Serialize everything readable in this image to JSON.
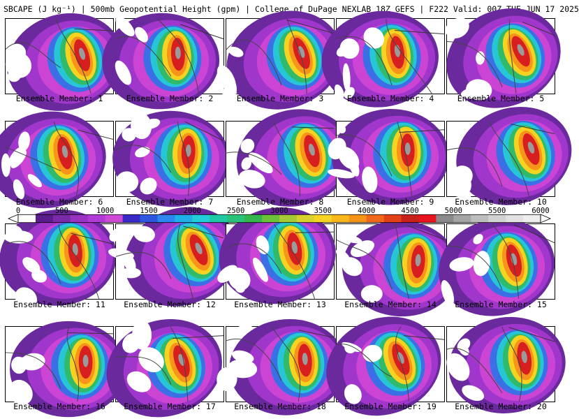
{
  "title": "SBCAPE (J kg⁻¹) | 500mb Geopotential Height (gpm) | College of DuPage NEXLAB 18Z GEFS | F222 Valid: 00Z TUE JUN 17 2025",
  "panel_label_prefix": "Ensemble Member: ",
  "members": [
    "1",
    "2",
    "3",
    "4",
    "5",
    "6",
    "7",
    "8",
    "9",
    "10",
    "11",
    "12",
    "13",
    "14",
    "15",
    "16",
    "17",
    "18",
    "19",
    "20"
  ],
  "colorbar": {
    "ticks": [
      "0",
      "500",
      "1000",
      "1500",
      "2000",
      "2500",
      "3000",
      "3500",
      "4000",
      "4500",
      "5000",
      "5500",
      "6000"
    ],
    "colors": [
      "#ffffff",
      "#5a1e8c",
      "#7a2aa8",
      "#9a33c2",
      "#b23ad6",
      "#cf4ad4",
      "#3a2ac8",
      "#2d57e0",
      "#2e86f0",
      "#1fb0ea",
      "#22cfd8",
      "#20c9a6",
      "#2bc27a",
      "#33b64e",
      "#6cc33a",
      "#a7c935",
      "#d8d22c",
      "#f6d421",
      "#f9b71c",
      "#f79316",
      "#f1681a",
      "#e34219",
      "#c82119",
      "#e8141e",
      "#8a8a8a",
      "#a5a5a5",
      "#bdbdbd",
      "#d2d2d2",
      "#e2e2e2",
      "#eeeeee"
    ]
  },
  "palette": {
    "purple_dark": "#6a2a9e",
    "purple": "#a136cc",
    "magenta": "#cc44d3",
    "blue": "#3a6fe6",
    "cyan": "#27c6d6",
    "green": "#2fbb6a",
    "yellow": "#f5d320",
    "orange": "#f6951a",
    "red": "#d81f1f",
    "gray": "#9b9b9b"
  }
}
